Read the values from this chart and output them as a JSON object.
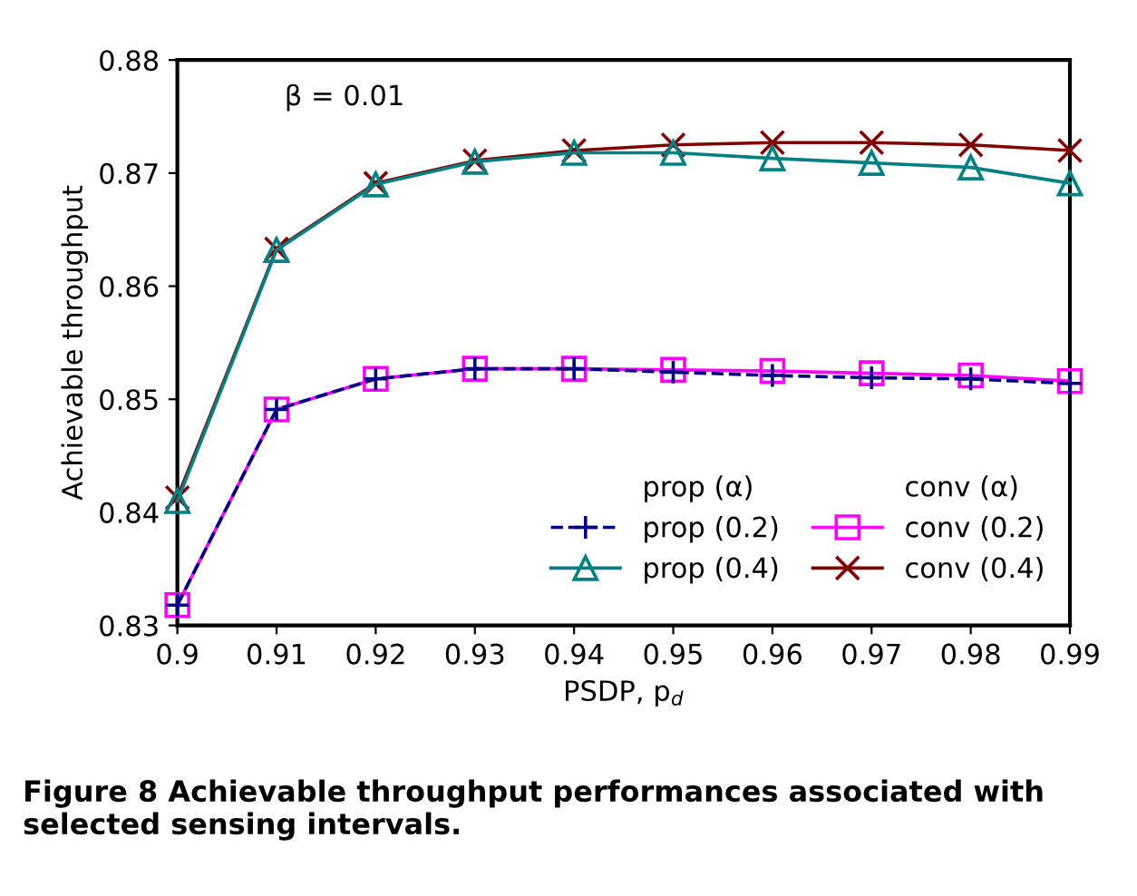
{
  "chart_data": {
    "type": "line",
    "xlabel": "PSDP, p$_{d}$",
    "ylabel": "Achievable throughput",
    "x": [
      0.9,
      0.91,
      0.92,
      0.93,
      0.94,
      0.95,
      0.96,
      0.97,
      0.98,
      0.99
    ],
    "xlim": [
      0.9,
      0.99
    ],
    "xticks": [
      0.9,
      0.91,
      0.92,
      0.93,
      0.94,
      0.95,
      0.96,
      0.97,
      0.98,
      0.99
    ],
    "ylim": [
      0.83,
      0.88
    ],
    "yticks": [
      0.83,
      0.84,
      0.85,
      0.86,
      0.87,
      0.88
    ],
    "grid": false,
    "legend": "bottom right",
    "series": [
      {
        "name": "prop (0.2)",
        "color": "#000080",
        "marker": "plus",
        "line_style": "dashed",
        "values": [
          0.8318,
          0.8491,
          0.8518,
          0.8527,
          0.8527,
          0.8524,
          0.8521,
          0.8519,
          0.8518,
          0.8514
        ]
      },
      {
        "name": "prop (0.4)",
        "color": "#008080",
        "marker": "triangle",
        "line_style": "solid",
        "values": [
          0.841,
          0.8632,
          0.869,
          0.871,
          0.8718,
          0.8718,
          0.8713,
          0.8709,
          0.8705,
          0.8691
        ]
      },
      {
        "name": "conv (0.2)",
        "color": "#ff00ff",
        "marker": "square",
        "line_style": "solid",
        "values": [
          0.8318,
          0.8491,
          0.8518,
          0.8527,
          0.8527,
          0.8526,
          0.8525,
          0.8523,
          0.8521,
          0.8516
        ]
      },
      {
        "name": "conv (0.4)",
        "color": "#800000",
        "marker": "cross",
        "line_style": "solid",
        "values": [
          0.8413,
          0.8633,
          0.8691,
          0.8711,
          0.872,
          0.8725,
          0.8727,
          0.8727,
          0.8725,
          0.872
        ]
      }
    ],
    "annotations": [
      "β = 0.01",
      "prop (α)",
      "conv (α)",
      "Figure 8 Achievable throughput performances associated with selected sensing intervals."
    ]
  }
}
